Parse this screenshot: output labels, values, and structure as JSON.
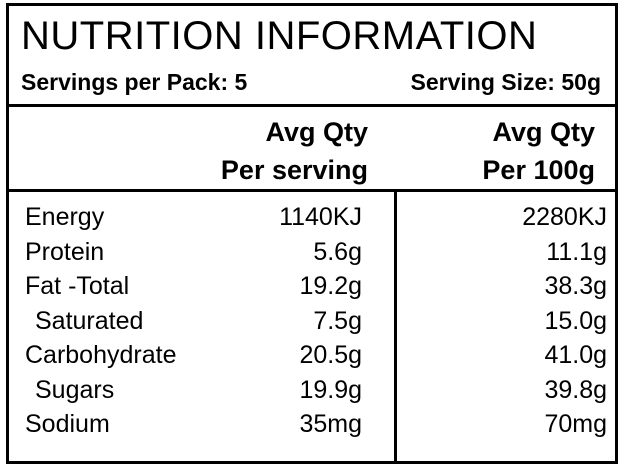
{
  "header": {
    "title": "NUTRITION INFORMATION",
    "servings_per_pack": "Servings per Pack: 5",
    "serving_size": "Serving Size: 50g"
  },
  "columns": {
    "per_serving_line1": "Avg Qty",
    "per_serving_line2": "Per serving",
    "per_100g_line1": "Avg Qty",
    "per_100g_line2": "Per 100g"
  },
  "rows": [
    {
      "name": "Energy",
      "per_serving": "1140KJ",
      "per_100g": "2280KJ"
    },
    {
      "name": "Protein",
      "per_serving": "5.6g",
      "per_100g": "11.1g"
    },
    {
      "name": "Fat -Total",
      "per_serving": "19.2g",
      "per_100g": "38.3g"
    },
    {
      "name": "Saturated",
      "per_serving": "7.5g",
      "per_100g": "15.0g"
    },
    {
      "name": "Carbohydrate",
      "per_serving": "20.5g",
      "per_100g": "41.0g"
    },
    {
      "name": "Sugars",
      "per_serving": "19.9g",
      "per_100g": "39.8g"
    },
    {
      "name": "Sodium",
      "per_serving": "35mg",
      "per_100g": "70mg"
    }
  ]
}
